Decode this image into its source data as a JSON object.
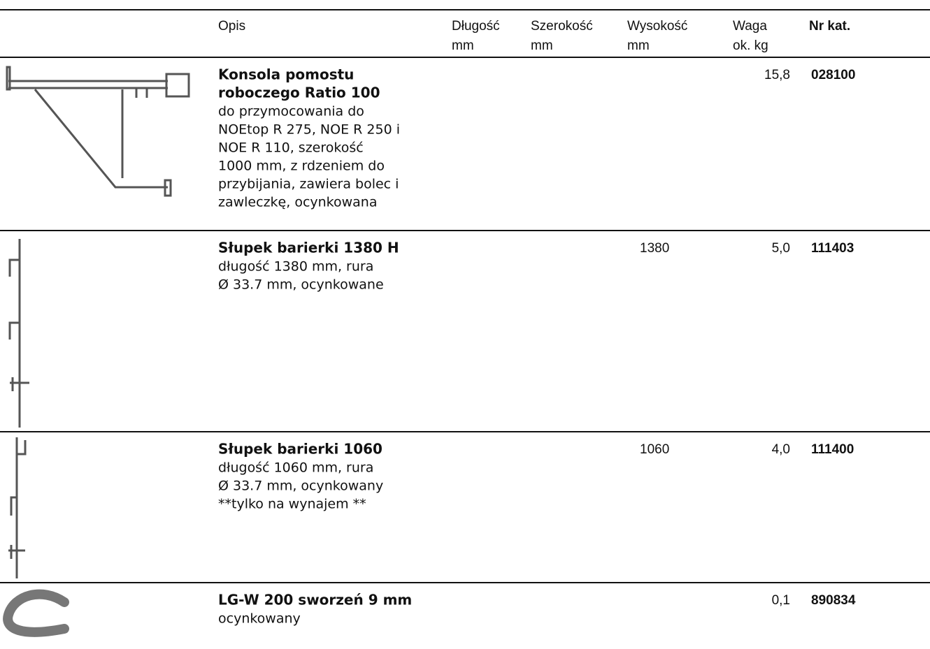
{
  "table": {
    "columns": [
      {
        "lines": [
          "Opis"
        ]
      },
      {
        "lines": [
          "Długość",
          "mm"
        ]
      },
      {
        "lines": [
          "Szerokość",
          "mm"
        ]
      },
      {
        "lines": [
          "Wysokość",
          "mm"
        ]
      },
      {
        "lines": [
          "Waga",
          "ok.  kg"
        ]
      },
      {
        "lines": [
          "Nr kat."
        ]
      }
    ],
    "rows": [
      {
        "name": [
          "Konsola pomostu",
          "roboczego Ratio 100"
        ],
        "description": [
          "do przymocowania do",
          "NOEtop R 275, NOE R 250 i",
          "NOE R 110, szerokość",
          "1000 mm, z rdzeniem do",
          "przybijania, zawiera bolec i",
          "zawleczkę, ocynkowana"
        ],
        "weight": "15,8",
        "catalog": "028100"
      },
      {
        "name": [
          "Słupek barierki 1380 H"
        ],
        "description": [
          "długość 1380 mm, rura",
          "Ø 33.7 mm, ocynkowane"
        ],
        "height": "1380",
        "weight": "5,0",
        "catalog": "111403"
      },
      {
        "name": [
          "Słupek barierki 1060"
        ],
        "description": [
          "długość 1060 mm, rura",
          "Ø 33.7 mm, ocynkowany",
          "**tylko na wynajem **"
        ],
        "height": "1060",
        "weight": "4,0",
        "catalog": "111400"
      },
      {
        "name": [
          "LG-W 200 sworzeń 9 mm"
        ],
        "description": [
          "ocynkowany"
        ],
        "weight": "0,1",
        "catalog": "890834"
      }
    ]
  }
}
